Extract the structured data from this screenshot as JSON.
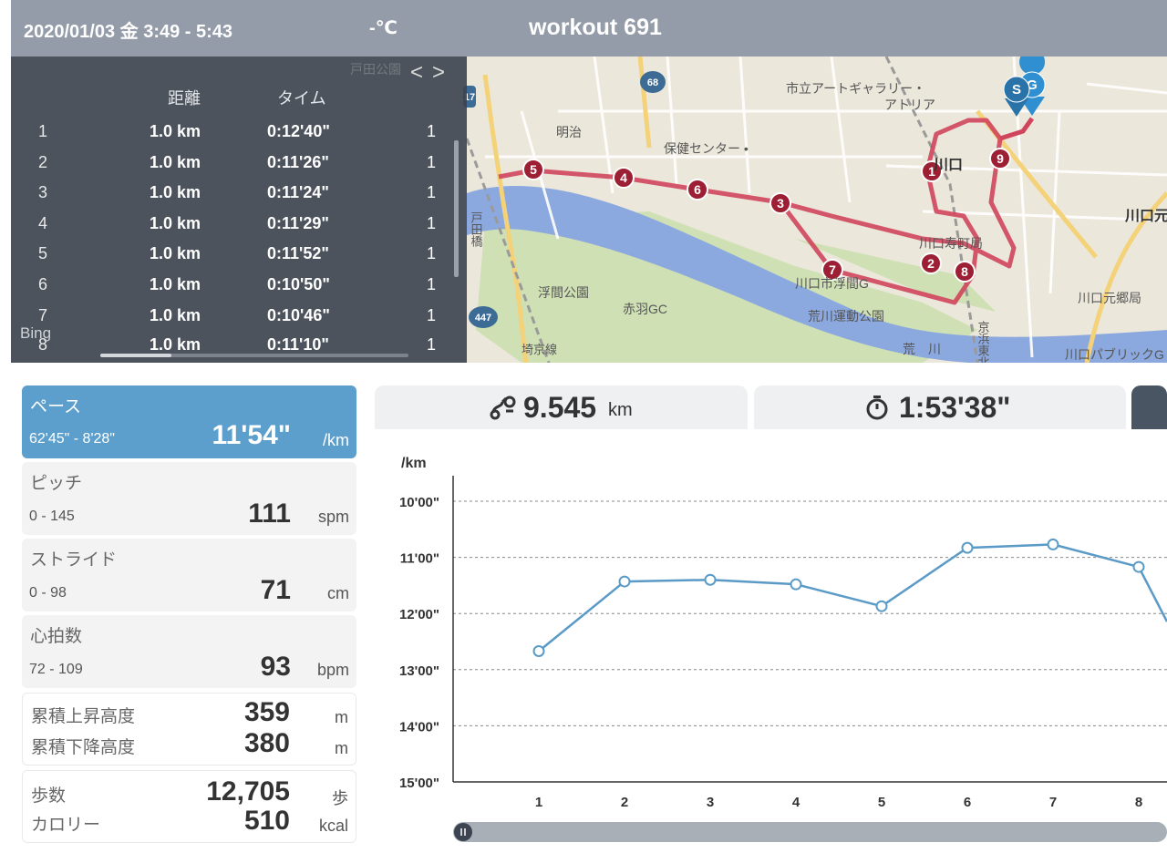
{
  "header": {
    "date": "2020/01/03 金 3:49 - 5:43",
    "temperature": "-℃",
    "title": "workout 691"
  },
  "splits": {
    "nav_prev": "<",
    "nav_next": ">",
    "col_distance": "距離",
    "col_time": "タイム",
    "rows": [
      {
        "no": "1",
        "dist": "1.0 km",
        "time": "0:12'40\"",
        "extra": "1"
      },
      {
        "no": "2",
        "dist": "1.0 km",
        "time": "0:11'26\"",
        "extra": "1"
      },
      {
        "no": "3",
        "dist": "1.0 km",
        "time": "0:11'24\"",
        "extra": "1"
      },
      {
        "no": "4",
        "dist": "1.0 km",
        "time": "0:11'29\"",
        "extra": "1"
      },
      {
        "no": "5",
        "dist": "1.0 km",
        "time": "0:11'52\"",
        "extra": "1"
      },
      {
        "no": "6",
        "dist": "1.0 km",
        "time": "0:10'50\"",
        "extra": "1"
      },
      {
        "no": "7",
        "dist": "1.0 km",
        "time": "0:10'46\"",
        "extra": "1"
      },
      {
        "no": "8",
        "dist": "1.0 km",
        "time": "0:11'10\"",
        "extra": "1"
      }
    ],
    "bing": "Bing"
  },
  "map": {
    "labels": {
      "art_gallery_1": "市立アートギャラリー・",
      "art_gallery_2": "アトリア",
      "meiji": "明治",
      "health_center": "保健センター •",
      "kawaguchi": "川口",
      "kawaguchi_right": "川口元",
      "toda_bridge": "戸田橋",
      "kotobuki_post": "川口寿町局",
      "ukima_park": "浮間公園",
      "akabane_gc": "赤羽GC",
      "kawaguchi_ukima": "川口市浮間G",
      "arakawa_park": "荒川運動公園",
      "arakawa": "荒　川",
      "motogo_post": "川口元郷局",
      "saikyo_line": "埼京線",
      "keihin_line": "京浜東北線",
      "kawaguchi_public": "川口パブリックG",
      "route_447": "447",
      "route_68": "68",
      "route_17": "17",
      "toda_park": "戸田公園"
    },
    "start_marker": "S",
    "goal_marker": "G",
    "km_markers": [
      "1",
      "2",
      "3",
      "4",
      "5",
      "6",
      "7",
      "8",
      "9"
    ]
  },
  "stats": {
    "pace": {
      "label": "ペース",
      "range": "62'45\" - 8'28\"",
      "value": "11'54\"",
      "unit": "/km"
    },
    "pitch": {
      "label": "ピッチ",
      "range": "0 - 145",
      "value": "111",
      "unit": "spm"
    },
    "stride": {
      "label": "ストライド",
      "range": "0 - 98",
      "value": "71",
      "unit": "cm"
    },
    "heart": {
      "label": "心拍数",
      "range": "72 - 109",
      "value": "93",
      "unit": "bpm"
    },
    "elev_up": {
      "label": "累積上昇高度",
      "value": "359",
      "unit": "m"
    },
    "elev_down": {
      "label": "累積下降高度",
      "value": "380",
      "unit": "m"
    },
    "steps": {
      "label": "歩数",
      "value": "12,705",
      "unit": "歩"
    },
    "calories": {
      "label": "カロリー",
      "value": "510",
      "unit": "kcal"
    }
  },
  "tabs": {
    "distance_value": "9.545",
    "distance_unit": "km",
    "time_value": "1:53'38\""
  },
  "chart_data": {
    "type": "line",
    "ylabel": "/km",
    "y_ticks": [
      "10'00\"",
      "11'00\"",
      "12'00\"",
      "13'00\"",
      "14'00\"",
      "15'00\""
    ],
    "ylim": [
      10,
      15
    ],
    "y_inverted": true,
    "categories": [
      "1",
      "2",
      "3",
      "4",
      "5",
      "6",
      "7",
      "8"
    ],
    "values": [
      12.67,
      11.43,
      11.4,
      11.48,
      11.87,
      10.83,
      10.77,
      11.17
    ],
    "grid": true,
    "color": "#5a9ac7"
  },
  "colors": {
    "header_bg": "#939ca8",
    "accent": "#5d9fcc",
    "route": "#d0455c",
    "river": "#8ca9df"
  }
}
